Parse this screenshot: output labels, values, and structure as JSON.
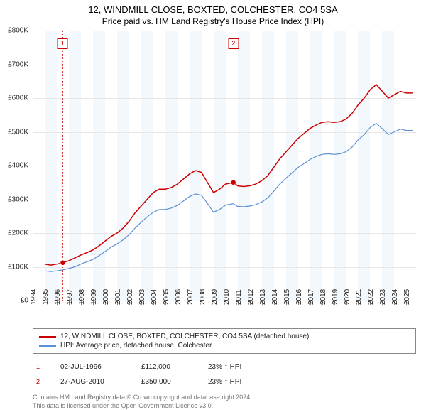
{
  "title": "12, WINDMILL CLOSE, BOXTED, COLCHESTER, CO4 5SA",
  "subtitle": "Price paid vs. HM Land Registry's House Price Index (HPI)",
  "chart": {
    "type": "line",
    "background_color": "#ffffff",
    "alt_band_color": "#f3f8fc",
    "grid_color": "#e6e6e6",
    "axis_color": "#808080",
    "xlim": [
      1994,
      2025.8
    ],
    "ylim": [
      0,
      800000
    ],
    "ytick_step": 100000,
    "ytick_prefix": "£",
    "ytick_labels": [
      "£0",
      "£100K",
      "£200K",
      "£300K",
      "£400K",
      "£500K",
      "£600K",
      "£700K",
      "£800K"
    ],
    "xticks": [
      1994,
      1995,
      1996,
      1997,
      1998,
      1999,
      2000,
      2001,
      2002,
      2003,
      2004,
      2005,
      2006,
      2007,
      2008,
      2009,
      2010,
      2011,
      2012,
      2013,
      2014,
      2015,
      2016,
      2017,
      2018,
      2019,
      2020,
      2021,
      2022,
      2023,
      2024,
      2025
    ],
    "series": [
      {
        "name": "price_paid",
        "label": "12, WINDMILL CLOSE, BOXTED, COLCHESTER, CO4 5SA (detached house)",
        "color": "#cc0000",
        "line_width": 1.5,
        "data": [
          [
            1995.0,
            108000
          ],
          [
            1995.5,
            105000
          ],
          [
            1996.0,
            108000
          ],
          [
            1996.5,
            112000
          ],
          [
            1997.0,
            118000
          ],
          [
            1997.5,
            126000
          ],
          [
            1998.0,
            135000
          ],
          [
            1998.5,
            142000
          ],
          [
            1999.0,
            150000
          ],
          [
            1999.5,
            162000
          ],
          [
            2000.0,
            176000
          ],
          [
            2000.5,
            190000
          ],
          [
            2001.0,
            200000
          ],
          [
            2001.5,
            215000
          ],
          [
            2002.0,
            235000
          ],
          [
            2002.5,
            260000
          ],
          [
            2003.0,
            280000
          ],
          [
            2003.5,
            300000
          ],
          [
            2004.0,
            320000
          ],
          [
            2004.5,
            330000
          ],
          [
            2005.0,
            330000
          ],
          [
            2005.5,
            335000
          ],
          [
            2006.0,
            345000
          ],
          [
            2006.5,
            360000
          ],
          [
            2007.0,
            375000
          ],
          [
            2007.5,
            385000
          ],
          [
            2008.0,
            380000
          ],
          [
            2008.5,
            350000
          ],
          [
            2009.0,
            320000
          ],
          [
            2009.5,
            330000
          ],
          [
            2010.0,
            345000
          ],
          [
            2010.65,
            350000
          ],
          [
            2011.0,
            340000
          ],
          [
            2011.5,
            338000
          ],
          [
            2012.0,
            340000
          ],
          [
            2012.5,
            345000
          ],
          [
            2013.0,
            355000
          ],
          [
            2013.5,
            370000
          ],
          [
            2014.0,
            395000
          ],
          [
            2014.5,
            420000
          ],
          [
            2015.0,
            440000
          ],
          [
            2015.5,
            460000
          ],
          [
            2016.0,
            480000
          ],
          [
            2016.5,
            495000
          ],
          [
            2017.0,
            510000
          ],
          [
            2017.5,
            520000
          ],
          [
            2018.0,
            528000
          ],
          [
            2018.5,
            530000
          ],
          [
            2019.0,
            528000
          ],
          [
            2019.5,
            530000
          ],
          [
            2020.0,
            538000
          ],
          [
            2020.5,
            555000
          ],
          [
            2021.0,
            580000
          ],
          [
            2021.5,
            600000
          ],
          [
            2022.0,
            625000
          ],
          [
            2022.5,
            640000
          ],
          [
            2023.0,
            620000
          ],
          [
            2023.5,
            600000
          ],
          [
            2024.0,
            610000
          ],
          [
            2024.5,
            620000
          ],
          [
            2025.0,
            615000
          ],
          [
            2025.5,
            615000
          ]
        ]
      },
      {
        "name": "hpi",
        "label": "HPI: Average price, detached house, Colchester",
        "color": "#5b8fd6",
        "line_width": 1.2,
        "data": [
          [
            1995.0,
            88000
          ],
          [
            1995.5,
            86000
          ],
          [
            1996.0,
            88000
          ],
          [
            1996.5,
            91000
          ],
          [
            1997.0,
            95000
          ],
          [
            1997.5,
            100000
          ],
          [
            1998.0,
            108000
          ],
          [
            1998.5,
            115000
          ],
          [
            1999.0,
            122000
          ],
          [
            1999.5,
            133000
          ],
          [
            2000.0,
            145000
          ],
          [
            2000.5,
            158000
          ],
          [
            2001.0,
            168000
          ],
          [
            2001.5,
            180000
          ],
          [
            2002.0,
            195000
          ],
          [
            2002.5,
            215000
          ],
          [
            2003.0,
            232000
          ],
          [
            2003.5,
            248000
          ],
          [
            2004.0,
            262000
          ],
          [
            2004.5,
            270000
          ],
          [
            2005.0,
            270000
          ],
          [
            2005.5,
            274000
          ],
          [
            2006.0,
            282000
          ],
          [
            2006.5,
            295000
          ],
          [
            2007.0,
            308000
          ],
          [
            2007.5,
            316000
          ],
          [
            2008.0,
            312000
          ],
          [
            2008.5,
            288000
          ],
          [
            2009.0,
            262000
          ],
          [
            2009.5,
            270000
          ],
          [
            2010.0,
            283000
          ],
          [
            2010.65,
            287000
          ],
          [
            2011.0,
            279000
          ],
          [
            2011.5,
            278000
          ],
          [
            2012.0,
            280000
          ],
          [
            2012.5,
            284000
          ],
          [
            2013.0,
            292000
          ],
          [
            2013.5,
            304000
          ],
          [
            2014.0,
            324000
          ],
          [
            2014.5,
            345000
          ],
          [
            2015.0,
            362000
          ],
          [
            2015.5,
            378000
          ],
          [
            2016.0,
            394000
          ],
          [
            2016.5,
            406000
          ],
          [
            2017.0,
            418000
          ],
          [
            2017.5,
            427000
          ],
          [
            2018.0,
            433000
          ],
          [
            2018.5,
            435000
          ],
          [
            2019.0,
            433000
          ],
          [
            2019.5,
            435000
          ],
          [
            2020.0,
            441000
          ],
          [
            2020.5,
            455000
          ],
          [
            2021.0,
            476000
          ],
          [
            2021.5,
            492000
          ],
          [
            2022.0,
            513000
          ],
          [
            2022.5,
            525000
          ],
          [
            2023.0,
            509000
          ],
          [
            2023.5,
            492000
          ],
          [
            2024.0,
            500000
          ],
          [
            2024.5,
            508000
          ],
          [
            2025.0,
            504000
          ],
          [
            2025.5,
            504000
          ]
        ]
      }
    ],
    "sale_markers": [
      {
        "n": "1",
        "x": 1996.5,
        "y": 112000
      },
      {
        "n": "2",
        "x": 2010.65,
        "y": 350000
      }
    ],
    "marker_label_top_offset": 0.03
  },
  "legend": {
    "rows": [
      {
        "color": "#cc0000",
        "label": "12, WINDMILL CLOSE, BOXTED, COLCHESTER, CO4 5SA (detached house)"
      },
      {
        "color": "#5b8fd6",
        "label": "HPI: Average price, detached house, Colchester"
      }
    ]
  },
  "sales": [
    {
      "n": "1",
      "date": "02-JUL-1996",
      "price": "£112,000",
      "delta": "23% ↑ HPI"
    },
    {
      "n": "2",
      "date": "27-AUG-2010",
      "price": "£350,000",
      "delta": "23% ↑ HPI"
    }
  ],
  "footer": {
    "line1": "Contains HM Land Registry data © Crown copyright and database right 2024.",
    "line2": "This data is licensed under the Open Government Licence v3.0."
  }
}
